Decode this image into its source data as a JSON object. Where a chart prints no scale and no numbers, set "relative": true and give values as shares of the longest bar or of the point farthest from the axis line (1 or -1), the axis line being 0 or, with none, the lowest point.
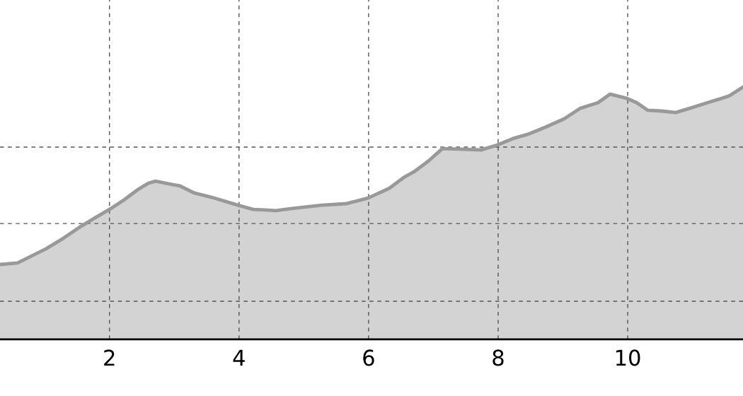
{
  "chart_data": {
    "type": "area",
    "relative": true,
    "x": [
      0.31,
      0.58,
      0.8,
      1.02,
      1.29,
      1.56,
      1.78,
      2.0,
      2.22,
      2.44,
      2.6,
      2.71,
      2.98,
      3.09,
      3.31,
      3.58,
      3.8,
      4.02,
      4.22,
      4.4,
      4.57,
      4.79,
      5.01,
      5.28,
      5.66,
      5.99,
      6.32,
      6.54,
      6.7,
      6.92,
      7.14,
      7.4,
      7.74,
      7.96,
      8.23,
      8.45,
      8.72,
      9.02,
      9.27,
      9.54,
      9.73,
      9.99,
      10.14,
      10.31,
      10.52,
      10.74,
      10.96,
      11.23,
      11.56,
      11.78
    ],
    "series": [
      {
        "color": "#999999",
        "values": [
          0.297,
          0.303,
          0.331,
          0.359,
          0.401,
          0.448,
          0.482,
          0.515,
          0.552,
          0.594,
          0.619,
          0.627,
          0.613,
          0.608,
          0.58,
          0.563,
          0.546,
          0.529,
          0.515,
          0.513,
          0.51,
          0.518,
          0.524,
          0.532,
          0.538,
          0.56,
          0.599,
          0.641,
          0.664,
          0.706,
          0.756,
          0.754,
          0.751,
          0.768,
          0.796,
          0.812,
          0.84,
          0.874,
          0.916,
          0.938,
          0.972,
          0.955,
          0.938,
          0.908,
          0.905,
          0.899,
          0.916,
          0.938,
          0.964,
          1.0
        ]
      }
    ],
    "xlim": [
      0.31,
      11.78
    ],
    "xticks": [
      2,
      4,
      6,
      8,
      10
    ],
    "ref_lines": [
      {
        "axis": "y",
        "value": 0.151,
        "line_style": "dashed",
        "color": "#555555"
      },
      {
        "axis": "y",
        "value": 0.459,
        "line_style": "dashed",
        "color": "#555555"
      },
      {
        "axis": "y",
        "value": 0.762,
        "line_style": "dashed",
        "color": "#555555"
      }
    ],
    "grid": "x",
    "line_style": "solid",
    "marker": "none"
  }
}
